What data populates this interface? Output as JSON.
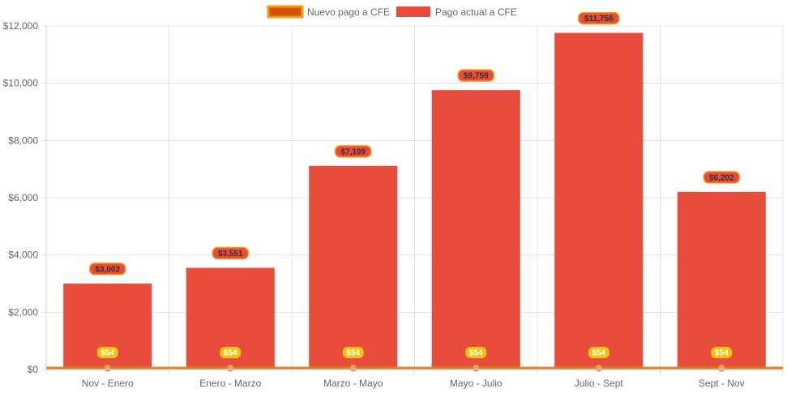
{
  "chart_data": {
    "type": "bar",
    "categories": [
      "Nov - Enero",
      "Enero - Marzo",
      "Marzo - Mayo",
      "Mayo - Julio",
      "Julio - Sept",
      "Sept - Nov"
    ],
    "series": [
      {
        "name": "Nuevo pago a CFE",
        "type": "line",
        "values": [
          54,
          54,
          54,
          54,
          54,
          54
        ],
        "labels": [
          "$54",
          "$54",
          "$54",
          "$54",
          "$54",
          "$54"
        ],
        "color": "#e67e22",
        "label_bg": "#f1c40f"
      },
      {
        "name": "Pago actual a CFE",
        "type": "bar",
        "values": [
          3002,
          3551,
          7109,
          9759,
          11756,
          6202
        ],
        "labels": [
          "$3,002",
          "$3,551",
          "$7,109",
          "$9,759",
          "$11,756",
          "$6,202"
        ],
        "color": "#e74c3c",
        "label_bg": "#e74c3c"
      }
    ],
    "y_ticks": [
      "$0",
      "$2,000",
      "$4,000",
      "$6,000",
      "$8,000",
      "$10,000",
      "$12,000"
    ],
    "ylim": [
      0,
      12000
    ],
    "grid": true,
    "legend": "top-center",
    "title": "",
    "xlabel": "",
    "ylabel": ""
  }
}
